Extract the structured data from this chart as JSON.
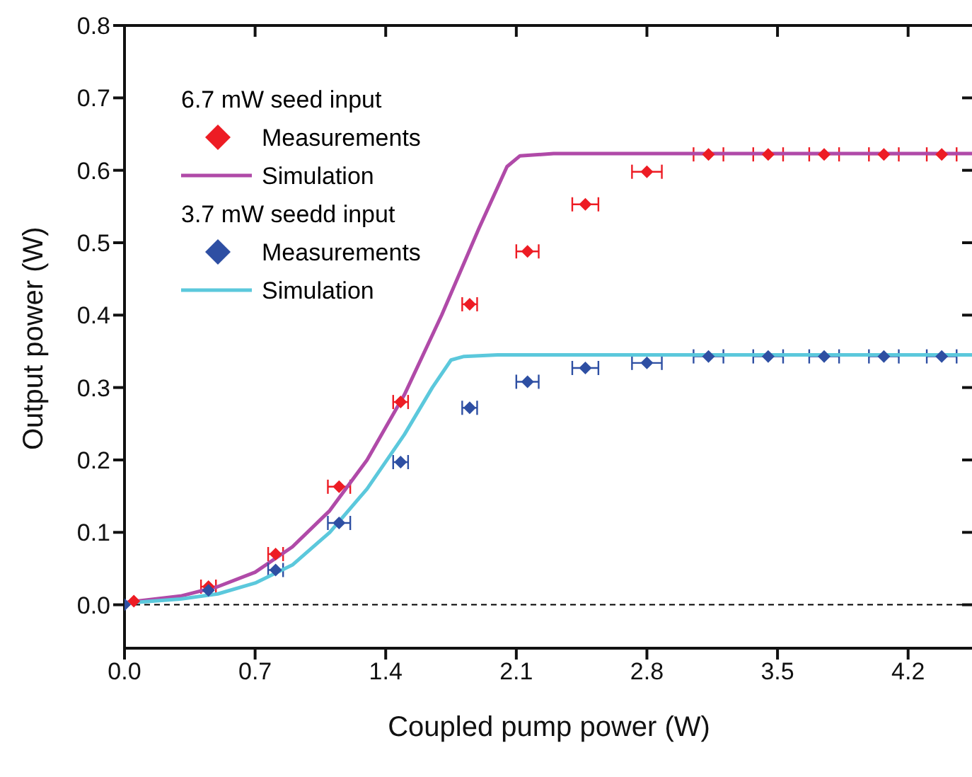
{
  "chart_data": {
    "type": "scatter",
    "xlabel": "Coupled pump power (W)",
    "ylabel": "Output power (W)",
    "xlim": [
      0,
      4.55
    ],
    "xticks": [
      {
        "value": 0,
        "label": "0.0"
      },
      0.7,
      1.4,
      2.1,
      2.8,
      3.5,
      4.2
    ],
    "ylim": [
      -0.06,
      0.8
    ],
    "yticks": [
      {
        "value": 0,
        "label": "0.0"
      },
      0.1,
      0.2,
      0.3,
      0.4,
      0.5,
      0.6,
      0.7,
      {
        "value": 0.8,
        "label": "0.8"
      }
    ],
    "legend": "top left",
    "annotations": [
      "6.7 mW seed input",
      "3.7 mW seedd input"
    ],
    "ref_lines": [
      {
        "axis": "y",
        "value": 0,
        "label": null,
        "color": "#000000",
        "line_style": "dashed"
      }
    ],
    "series": [
      {
        "name": "Measurements",
        "marker": "diamond",
        "color": "#ed1c24",
        "x": [
          0.05,
          0.45,
          0.81,
          1.15,
          1.48,
          1.85,
          2.16,
          2.47,
          2.8,
          3.13,
          3.45,
          3.75,
          4.07,
          4.38
        ],
        "values": [
          0.005,
          0.025,
          0.07,
          0.163,
          0.28,
          0.415,
          0.488,
          0.553,
          0.598,
          0.622,
          0.622,
          0.622,
          0.622,
          0.622
        ],
        "xerrors": [
          null,
          0.04,
          0.04,
          0.06,
          0.04,
          0.04,
          0.06,
          0.07,
          0.08,
          0.08,
          0.08,
          0.08,
          0.08,
          0.08
        ]
      },
      {
        "name": "Simulation",
        "type": "line",
        "marker": "none",
        "color": "#b04aa8",
        "x": [
          0,
          0.3,
          0.5,
          0.7,
          0.9,
          1.1,
          1.3,
          1.5,
          1.7,
          1.9,
          2.05,
          2.12,
          2.3,
          4.55
        ],
        "values": [
          0.003,
          0.012,
          0.025,
          0.045,
          0.08,
          0.13,
          0.2,
          0.29,
          0.4,
          0.52,
          0.605,
          0.62,
          0.623,
          0.623
        ]
      },
      {
        "name": "Measurements",
        "marker": "diamond",
        "color": "#2e4fa3",
        "x": [
          0.0,
          0.45,
          0.81,
          1.15,
          1.48,
          1.85,
          2.16,
          2.47,
          2.8,
          3.13,
          3.45,
          3.75,
          4.07,
          4.38
        ],
        "values": [
          0.0,
          0.02,
          0.048,
          0.113,
          0.197,
          0.272,
          0.308,
          0.327,
          0.334,
          0.343,
          0.343,
          0.343,
          0.343,
          0.343
        ],
        "xerrors": [
          null,
          null,
          0.04,
          0.06,
          0.04,
          0.04,
          0.06,
          0.07,
          0.08,
          0.08,
          0.08,
          0.08,
          0.08,
          0.08
        ]
      },
      {
        "name": "Simulation",
        "type": "line",
        "marker": "none",
        "color": "#5bc8dc",
        "x": [
          0,
          0.3,
          0.5,
          0.7,
          0.9,
          1.1,
          1.3,
          1.5,
          1.65,
          1.75,
          1.82,
          2.0,
          4.55
        ],
        "values": [
          0.002,
          0.008,
          0.015,
          0.03,
          0.055,
          0.1,
          0.16,
          0.235,
          0.3,
          0.338,
          0.343,
          0.345,
          0.345
        ]
      }
    ]
  }
}
